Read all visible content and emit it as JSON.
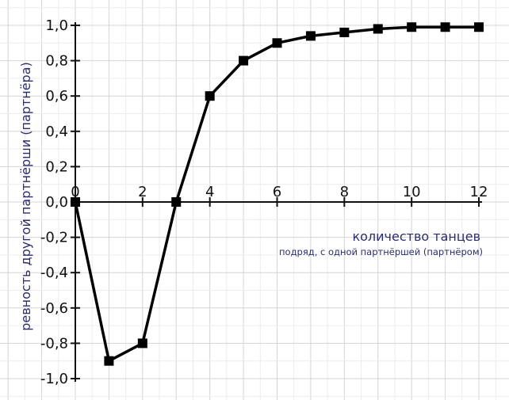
{
  "colors": {
    "grid_minor": "#ececec",
    "grid_major": "#d4d4d4",
    "axis": "#111111",
    "series": "#000000",
    "label": "#2b2d6e"
  },
  "chart_data": {
    "type": "line",
    "title": "",
    "xlabel": "количество танцев",
    "xlabel_sub": "подряд, с одной партнёршей (партнёром)",
    "ylabel": "ревность другой партнёрши (партнёра)",
    "xlim": [
      0,
      12
    ],
    "ylim": [
      -1.0,
      1.0
    ],
    "x_ticks": [
      0,
      2,
      4,
      6,
      8,
      10,
      12
    ],
    "x_tick_labels": [
      "0",
      "2",
      "4",
      "6",
      "8",
      "10",
      "12"
    ],
    "y_ticks": [
      1.0,
      0.8,
      0.6,
      0.4,
      0.2,
      0.0,
      -0.2,
      -0.4,
      -0.6,
      -0.8,
      -1.0
    ],
    "y_tick_labels": [
      "1,0",
      "0,8",
      "0,6",
      "0,4",
      "0,2",
      "0,0",
      "-0,2",
      "-0,4",
      "-0,6",
      "-0,8",
      "-1,0"
    ],
    "grid": true,
    "marker": "square",
    "series": [
      {
        "x": [
          0,
          1,
          2,
          3,
          4,
          5,
          6,
          7,
          8,
          9,
          10,
          11,
          12
        ],
        "y": [
          0.0,
          -0.9,
          -0.8,
          0.0,
          0.6,
          0.8,
          0.9,
          0.94,
          0.96,
          0.98,
          0.99,
          0.99,
          0.99
        ]
      }
    ]
  }
}
